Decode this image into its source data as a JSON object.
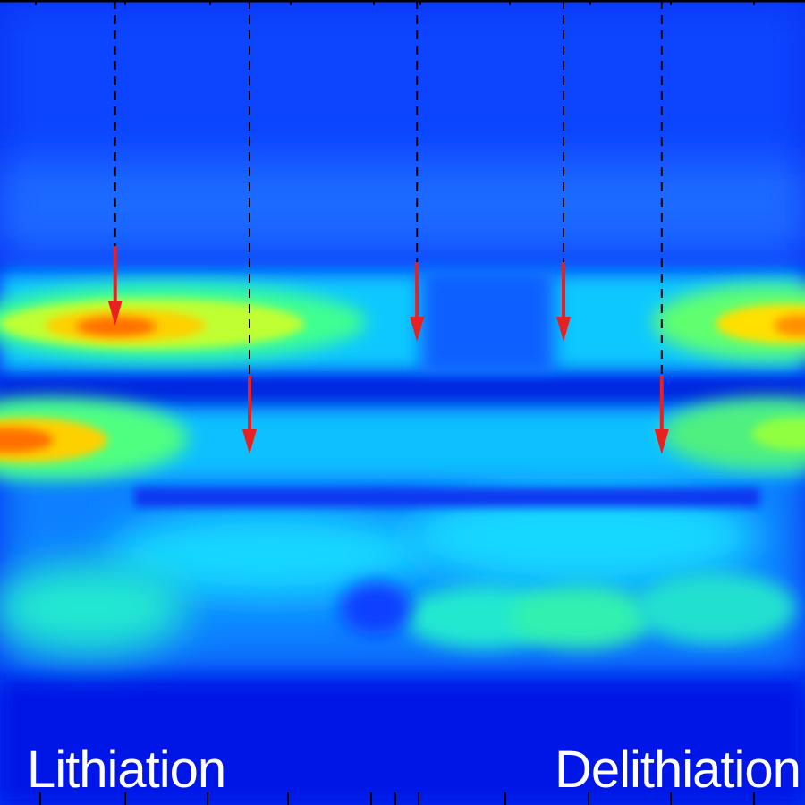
{
  "chart_data": {
    "type": "heatmap",
    "title": "",
    "xlabel": "",
    "ylabel": "",
    "colormap": [
      "#0018e6",
      "#0050ff",
      "#00c8ff",
      "#20e8c0",
      "#80ff40",
      "#ffff00",
      "#ff8000",
      "#e04000"
    ],
    "grid": false,
    "legend": "none",
    "features": [
      {
        "name": "upper-band-left",
        "rows": [
          0.4,
          0.42
        ],
        "cols": [
          0.0,
          0.45
        ],
        "peak_intensity": 1.0
      },
      {
        "name": "upper-band-right",
        "rows": [
          0.4,
          0.42
        ],
        "cols": [
          0.82,
          1.0
        ],
        "peak_intensity": 0.95
      },
      {
        "name": "lower-band-left",
        "rows": [
          0.53,
          0.56
        ],
        "cols": [
          0.0,
          0.2
        ],
        "peak_intensity": 0.95
      },
      {
        "name": "lower-band-right",
        "rows": [
          0.53,
          0.56
        ],
        "cols": [
          0.85,
          1.0
        ],
        "peak_intensity": 0.7
      }
    ],
    "markers": [
      {
        "id": "m1",
        "x_frac": 0.143,
        "arrow_to_frac": 0.4
      },
      {
        "id": "m2",
        "x_frac": 0.31,
        "arrow_to_frac": 0.56
      },
      {
        "id": "m3",
        "x_frac": 0.518,
        "arrow_to_frac": 0.42
      },
      {
        "id": "m4",
        "x_frac": 0.7,
        "arrow_to_frac": 0.42
      },
      {
        "id": "m5",
        "x_frac": 0.822,
        "arrow_to_frac": 0.56
      }
    ],
    "annotations": [
      {
        "id": "lithiation",
        "text": "Lithiation",
        "position": "bottom-left"
      },
      {
        "id": "delithiation",
        "text": "Delithiation",
        "position": "bottom-right"
      }
    ],
    "colors": {
      "marker_line": "#000000",
      "arrow": "#e82020",
      "label": "#ffffff",
      "axis": "#000000"
    }
  }
}
